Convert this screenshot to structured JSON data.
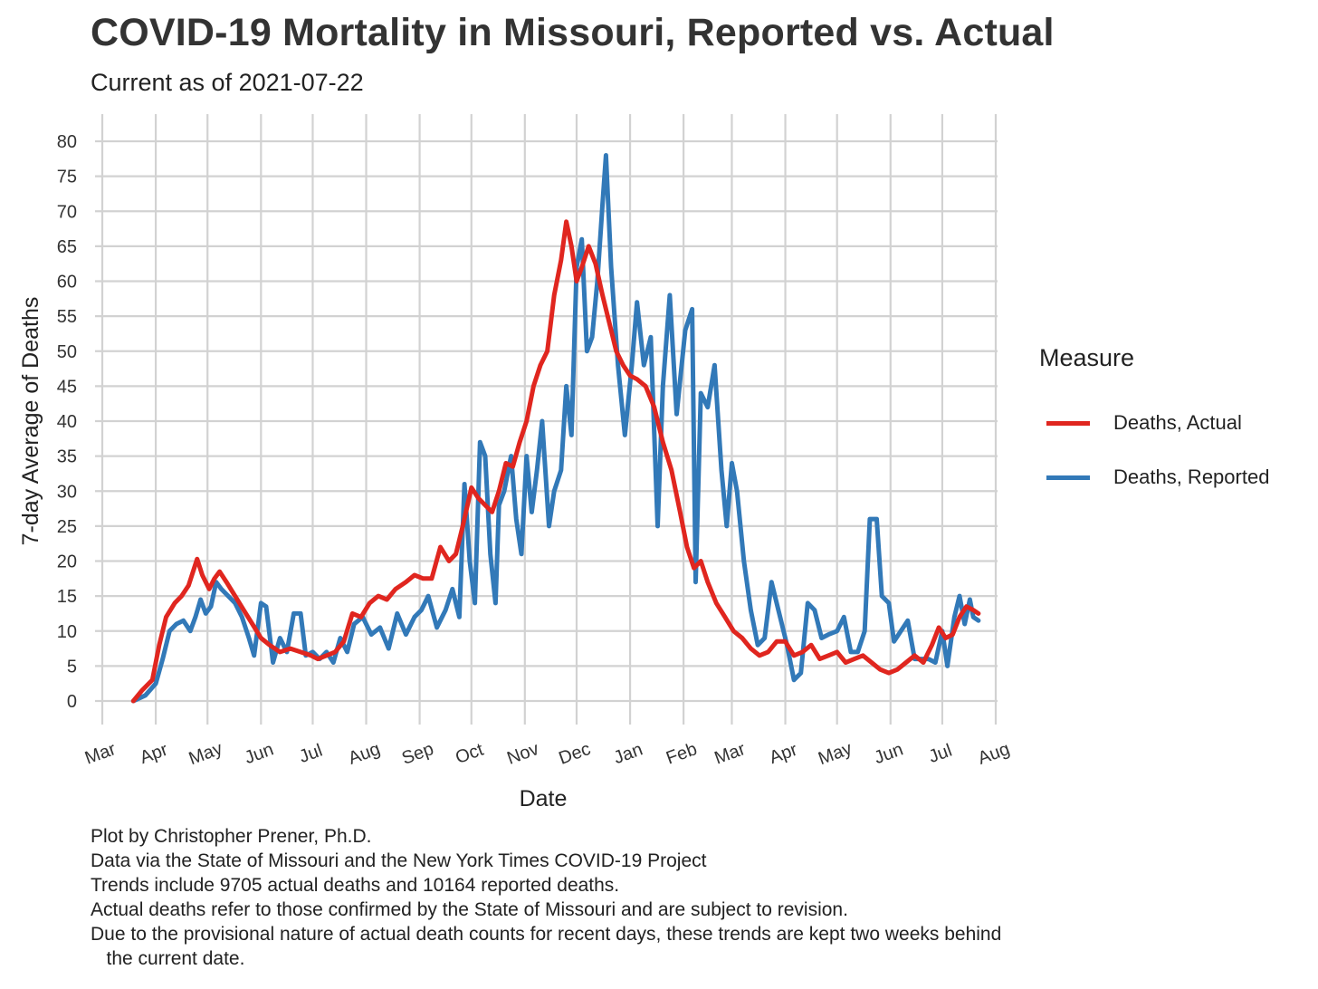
{
  "title": "COVID-19 Mortality in Missouri, Reported vs. Actual",
  "subtitle": "Current as of 2021-07-22",
  "legend": {
    "title": "Measure",
    "items": [
      {
        "label": "Deaths, Actual",
        "color": "#e0261f"
      },
      {
        "label": "Deaths, Reported",
        "color": "#3279b8"
      }
    ]
  },
  "caption": [
    "Plot by Christopher Prener, Ph.D.",
    "Data via the State of Missouri and the New York Times COVID-19 Project",
    "Trends include 9705 actual deaths and 10164 reported deaths.",
    "Actual deaths refer to those confirmed by the State of Missouri and are subject to revision.",
    "Due to the provisional nature of actual death counts for recent days, these trends are kept two weeks behind",
    "   the current date."
  ],
  "chart_data": {
    "type": "line",
    "xlabel": "Date",
    "ylabel": "7-day Average of Deaths",
    "xlim": [
      "2020-03-01",
      "2021-08-01"
    ],
    "ylim": [
      0,
      80
    ],
    "x_ticks": [
      "2020-03-01",
      "2020-04-01",
      "2020-05-01",
      "2020-06-01",
      "2020-07-01",
      "2020-08-01",
      "2020-09-01",
      "2020-10-01",
      "2020-11-01",
      "2020-12-01",
      "2021-01-01",
      "2021-02-01",
      "2021-03-01",
      "2021-04-01",
      "2021-05-01",
      "2021-06-01",
      "2021-07-01",
      "2021-08-01"
    ],
    "x_tick_labels": [
      "Mar",
      "Apr",
      "May",
      "Jun",
      "Jul",
      "Aug",
      "Sep",
      "Oct",
      "Nov",
      "Dec",
      "Jan",
      "Feb",
      "Mar",
      "Apr",
      "May",
      "Jun",
      "Jul",
      "Aug"
    ],
    "y_ticks": [
      0,
      5,
      10,
      15,
      20,
      25,
      30,
      35,
      40,
      45,
      50,
      55,
      60,
      65,
      70,
      75,
      80
    ],
    "grid": true,
    "legend_position": "right",
    "series": [
      {
        "name": "Deaths, Actual",
        "color": "#e0261f",
        "points": [
          [
            "2020-03-19",
            0
          ],
          [
            "2020-03-24",
            1.5
          ],
          [
            "2020-03-30",
            3
          ],
          [
            "2020-04-03",
            8
          ],
          [
            "2020-04-07",
            12
          ],
          [
            "2020-04-12",
            14
          ],
          [
            "2020-04-16",
            15
          ],
          [
            "2020-04-20",
            16.5
          ],
          [
            "2020-04-25",
            20.3
          ],
          [
            "2020-04-28",
            18
          ],
          [
            "2020-05-02",
            16
          ],
          [
            "2020-05-05",
            17.5
          ],
          [
            "2020-05-08",
            18.5
          ],
          [
            "2020-05-12",
            17
          ],
          [
            "2020-05-17",
            15
          ],
          [
            "2020-05-22",
            13
          ],
          [
            "2020-05-27",
            11
          ],
          [
            "2020-06-01",
            9
          ],
          [
            "2020-06-06",
            8
          ],
          [
            "2020-06-12",
            7
          ],
          [
            "2020-06-18",
            7.5
          ],
          [
            "2020-06-24",
            7
          ],
          [
            "2020-06-30",
            6.5
          ],
          [
            "2020-07-04",
            6
          ],
          [
            "2020-07-09",
            6.5
          ],
          [
            "2020-07-14",
            7
          ],
          [
            "2020-07-19",
            8.5
          ],
          [
            "2020-07-24",
            12.5
          ],
          [
            "2020-07-29",
            12
          ],
          [
            "2020-08-03",
            14
          ],
          [
            "2020-08-08",
            15
          ],
          [
            "2020-08-13",
            14.5
          ],
          [
            "2020-08-18",
            16
          ],
          [
            "2020-08-24",
            17
          ],
          [
            "2020-08-29",
            18
          ],
          [
            "2020-09-03",
            17.5
          ],
          [
            "2020-09-08",
            17.5
          ],
          [
            "2020-09-13",
            22
          ],
          [
            "2020-09-18",
            20
          ],
          [
            "2020-09-22",
            21
          ],
          [
            "2020-09-26",
            25
          ],
          [
            "2020-10-01",
            30.5
          ],
          [
            "2020-10-05",
            29
          ],
          [
            "2020-10-09",
            28
          ],
          [
            "2020-10-13",
            27
          ],
          [
            "2020-10-17",
            30
          ],
          [
            "2020-10-21",
            34
          ],
          [
            "2020-10-25",
            33.5
          ],
          [
            "2020-10-29",
            37
          ],
          [
            "2020-11-02",
            40
          ],
          [
            "2020-11-06",
            45
          ],
          [
            "2020-11-10",
            48
          ],
          [
            "2020-11-14",
            50
          ],
          [
            "2020-11-18",
            58
          ],
          [
            "2020-11-22",
            63
          ],
          [
            "2020-11-25",
            68.5
          ],
          [
            "2020-11-28",
            65
          ],
          [
            "2020-12-01",
            60
          ],
          [
            "2020-12-04",
            62
          ],
          [
            "2020-12-08",
            65
          ],
          [
            "2020-12-12",
            62.5
          ],
          [
            "2020-12-16",
            58
          ],
          [
            "2020-12-20",
            54
          ],
          [
            "2020-12-24",
            50
          ],
          [
            "2020-12-28",
            48
          ],
          [
            "2021-01-01",
            46.5
          ],
          [
            "2021-01-05",
            46
          ],
          [
            "2021-01-10",
            45
          ],
          [
            "2021-01-15",
            42
          ],
          [
            "2021-01-20",
            37
          ],
          [
            "2021-01-25",
            33
          ],
          [
            "2021-01-30",
            27
          ],
          [
            "2021-02-03",
            22
          ],
          [
            "2021-02-07",
            19
          ],
          [
            "2021-02-11",
            20
          ],
          [
            "2021-02-15",
            17
          ],
          [
            "2021-02-20",
            14
          ],
          [
            "2021-02-25",
            12
          ],
          [
            "2021-03-02",
            10
          ],
          [
            "2021-03-07",
            9
          ],
          [
            "2021-03-12",
            7.5
          ],
          [
            "2021-03-17",
            6.5
          ],
          [
            "2021-03-22",
            7
          ],
          [
            "2021-03-27",
            8.5
          ],
          [
            "2021-04-01",
            8.5
          ],
          [
            "2021-04-06",
            6.5
          ],
          [
            "2021-04-11",
            7
          ],
          [
            "2021-04-16",
            8
          ],
          [
            "2021-04-21",
            6
          ],
          [
            "2021-04-26",
            6.5
          ],
          [
            "2021-05-01",
            7
          ],
          [
            "2021-05-06",
            5.5
          ],
          [
            "2021-05-11",
            6
          ],
          [
            "2021-05-16",
            6.5
          ],
          [
            "2021-05-21",
            5.5
          ],
          [
            "2021-05-26",
            4.5
          ],
          [
            "2021-05-31",
            4
          ],
          [
            "2021-06-05",
            4.5
          ],
          [
            "2021-06-10",
            5.5
          ],
          [
            "2021-06-15",
            6.5
          ],
          [
            "2021-06-20",
            5.5
          ],
          [
            "2021-06-25",
            8
          ],
          [
            "2021-06-29",
            10.5
          ],
          [
            "2021-07-03",
            9
          ],
          [
            "2021-07-07",
            9.5
          ],
          [
            "2021-07-11",
            12
          ],
          [
            "2021-07-15",
            13.5
          ],
          [
            "2021-07-19",
            13
          ],
          [
            "2021-07-22",
            12.5
          ]
        ]
      },
      {
        "name": "Deaths, Reported",
        "color": "#3279b8",
        "points": [
          [
            "2020-03-19",
            0
          ],
          [
            "2020-03-26",
            0.8
          ],
          [
            "2020-04-01",
            2.5
          ],
          [
            "2020-04-05",
            6
          ],
          [
            "2020-04-09",
            10
          ],
          [
            "2020-04-13",
            11
          ],
          [
            "2020-04-17",
            11.5
          ],
          [
            "2020-04-21",
            10
          ],
          [
            "2020-04-24",
            12
          ],
          [
            "2020-04-27",
            14.5
          ],
          [
            "2020-04-30",
            12.5
          ],
          [
            "2020-05-03",
            13.5
          ],
          [
            "2020-05-06",
            17
          ],
          [
            "2020-05-09",
            16
          ],
          [
            "2020-05-13",
            15
          ],
          [
            "2020-05-17",
            14
          ],
          [
            "2020-05-21",
            12
          ],
          [
            "2020-05-25",
            9
          ],
          [
            "2020-05-28",
            6.5
          ],
          [
            "2020-06-01",
            14
          ],
          [
            "2020-06-04",
            13.5
          ],
          [
            "2020-06-08",
            5.5
          ],
          [
            "2020-06-12",
            9
          ],
          [
            "2020-06-16",
            7
          ],
          [
            "2020-06-20",
            12.5
          ],
          [
            "2020-06-24",
            12.5
          ],
          [
            "2020-06-27",
            6.5
          ],
          [
            "2020-07-01",
            7
          ],
          [
            "2020-07-05",
            6
          ],
          [
            "2020-07-09",
            7
          ],
          [
            "2020-07-13",
            5.5
          ],
          [
            "2020-07-17",
            9
          ],
          [
            "2020-07-21",
            7
          ],
          [
            "2020-07-25",
            11
          ],
          [
            "2020-07-30",
            12
          ],
          [
            "2020-08-04",
            9.5
          ],
          [
            "2020-08-09",
            10.5
          ],
          [
            "2020-08-14",
            7.5
          ],
          [
            "2020-08-19",
            12.5
          ],
          [
            "2020-08-24",
            9.5
          ],
          [
            "2020-08-29",
            12
          ],
          [
            "2020-09-02",
            13
          ],
          [
            "2020-09-06",
            15
          ],
          [
            "2020-09-11",
            10.5
          ],
          [
            "2020-09-16",
            13
          ],
          [
            "2020-09-20",
            16
          ],
          [
            "2020-09-24",
            12
          ],
          [
            "2020-09-27",
            31
          ],
          [
            "2020-09-30",
            20
          ],
          [
            "2020-10-03",
            14
          ],
          [
            "2020-10-06",
            37
          ],
          [
            "2020-10-09",
            35
          ],
          [
            "2020-10-12",
            21
          ],
          [
            "2020-10-15",
            14
          ],
          [
            "2020-10-17",
            28
          ],
          [
            "2020-10-20",
            30
          ],
          [
            "2020-10-24",
            35
          ],
          [
            "2020-10-27",
            26
          ],
          [
            "2020-10-30",
            21
          ],
          [
            "2020-11-02",
            35
          ],
          [
            "2020-11-05",
            27
          ],
          [
            "2020-11-08",
            33
          ],
          [
            "2020-11-11",
            40
          ],
          [
            "2020-11-15",
            25
          ],
          [
            "2020-11-18",
            30
          ],
          [
            "2020-11-22",
            33
          ],
          [
            "2020-11-25",
            45
          ],
          [
            "2020-11-28",
            38
          ],
          [
            "2020-12-01",
            62
          ],
          [
            "2020-12-04",
            66
          ],
          [
            "2020-12-07",
            50
          ],
          [
            "2020-12-10",
            52
          ],
          [
            "2020-12-13",
            60
          ],
          [
            "2020-12-16",
            71
          ],
          [
            "2020-12-18",
            78
          ],
          [
            "2020-12-21",
            62
          ],
          [
            "2020-12-25",
            48
          ],
          [
            "2020-12-29",
            38
          ],
          [
            "2021-01-02",
            48
          ],
          [
            "2021-01-05",
            57
          ],
          [
            "2021-01-09",
            48
          ],
          [
            "2021-01-13",
            52
          ],
          [
            "2021-01-17",
            25
          ],
          [
            "2021-01-20",
            45
          ],
          [
            "2021-01-24",
            58
          ],
          [
            "2021-01-28",
            41
          ],
          [
            "2021-02-02",
            53
          ],
          [
            "2021-02-06",
            56
          ],
          [
            "2021-02-08",
            17
          ],
          [
            "2021-02-11",
            44
          ],
          [
            "2021-02-15",
            42
          ],
          [
            "2021-02-19",
            48
          ],
          [
            "2021-02-23",
            33
          ],
          [
            "2021-02-26",
            25
          ],
          [
            "2021-03-01",
            34
          ],
          [
            "2021-03-04",
            30
          ],
          [
            "2021-03-08",
            20
          ],
          [
            "2021-03-12",
            13
          ],
          [
            "2021-03-16",
            8
          ],
          [
            "2021-03-20",
            9
          ],
          [
            "2021-03-24",
            17
          ],
          [
            "2021-03-28",
            13
          ],
          [
            "2021-04-02",
            8
          ],
          [
            "2021-04-06",
            3
          ],
          [
            "2021-04-10",
            4
          ],
          [
            "2021-04-14",
            14
          ],
          [
            "2021-04-18",
            13
          ],
          [
            "2021-04-22",
            9
          ],
          [
            "2021-04-26",
            9.5
          ],
          [
            "2021-05-01",
            10
          ],
          [
            "2021-05-05",
            12
          ],
          [
            "2021-05-09",
            7
          ],
          [
            "2021-05-13",
            7
          ],
          [
            "2021-05-17",
            10
          ],
          [
            "2021-05-20",
            26
          ],
          [
            "2021-05-24",
            26
          ],
          [
            "2021-05-27",
            15
          ],
          [
            "2021-05-31",
            14
          ],
          [
            "2021-06-03",
            8.5
          ],
          [
            "2021-06-07",
            10
          ],
          [
            "2021-06-11",
            11.5
          ],
          [
            "2021-06-15",
            6
          ],
          [
            "2021-06-19",
            6
          ],
          [
            "2021-06-23",
            6
          ],
          [
            "2021-06-27",
            5.5
          ],
          [
            "2021-07-01",
            10
          ],
          [
            "2021-07-04",
            5
          ],
          [
            "2021-07-08",
            12
          ],
          [
            "2021-07-11",
            15
          ],
          [
            "2021-07-14",
            11
          ],
          [
            "2021-07-17",
            14.5
          ],
          [
            "2021-07-19",
            12
          ],
          [
            "2021-07-22",
            11.5
          ]
        ]
      }
    ]
  }
}
